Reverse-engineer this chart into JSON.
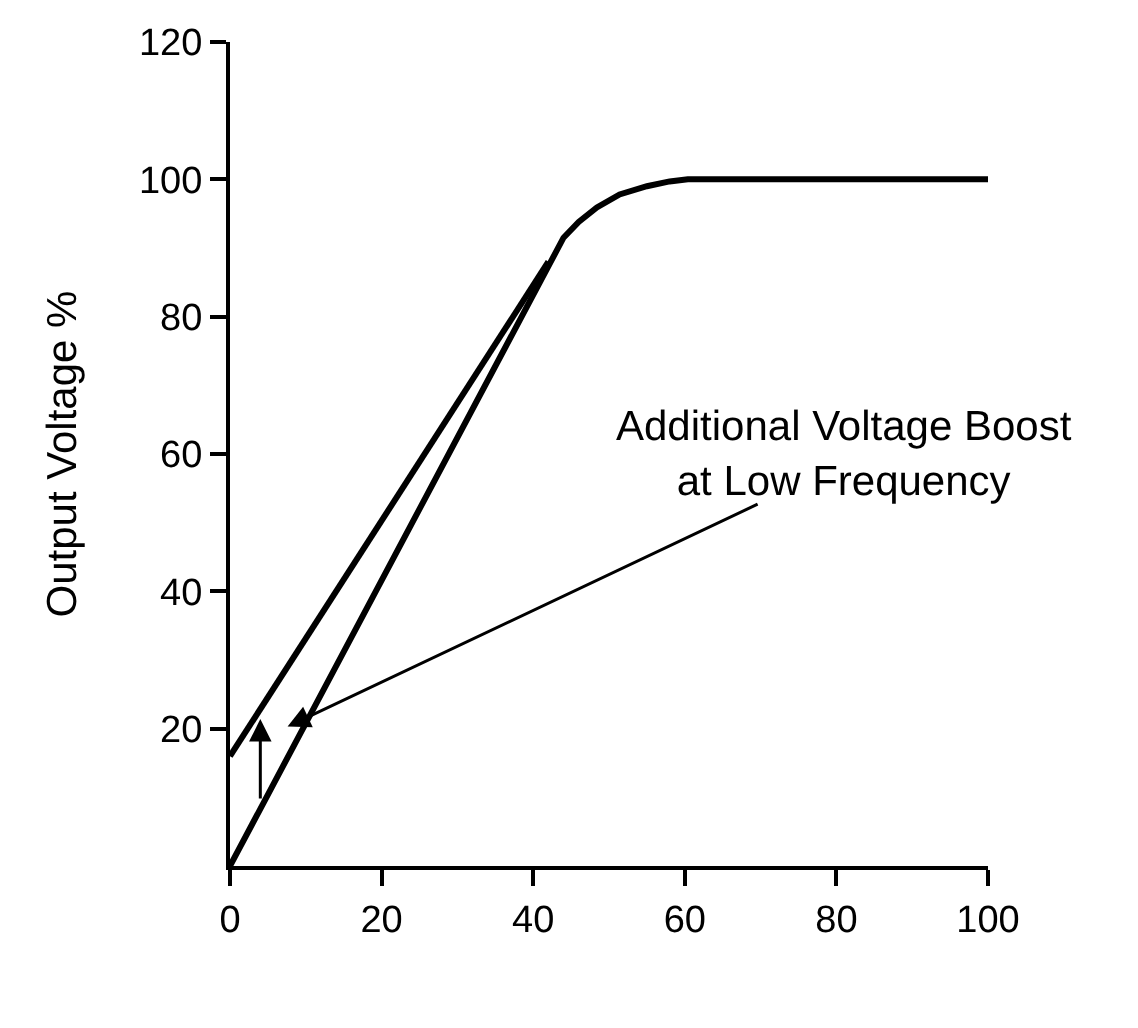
{
  "chart_data": {
    "type": "line",
    "ylabel": "Output Voltage %",
    "series": [
      {
        "color": "#000000",
        "x": [
          0,
          42
        ],
        "values": [
          16,
          88
        ]
      },
      {
        "color": "#000000",
        "x": [
          0,
          44,
          46,
          48.4,
          51.4,
          55,
          58,
          60.4,
          100
        ],
        "values": [
          0,
          91.5,
          93.8,
          95.9,
          97.8,
          99,
          99.7,
          100,
          100
        ]
      }
    ],
    "annotations": [
      "Additional Voltage Boost\nat Low Frequency"
    ],
    "xlim": [
      0,
      100
    ],
    "xticks": [
      0,
      20,
      40,
      60,
      80,
      100
    ],
    "ylim": [
      0,
      120
    ],
    "yticks": [
      20,
      40,
      60,
      80,
      100,
      120
    ],
    "line_style": "solid"
  }
}
